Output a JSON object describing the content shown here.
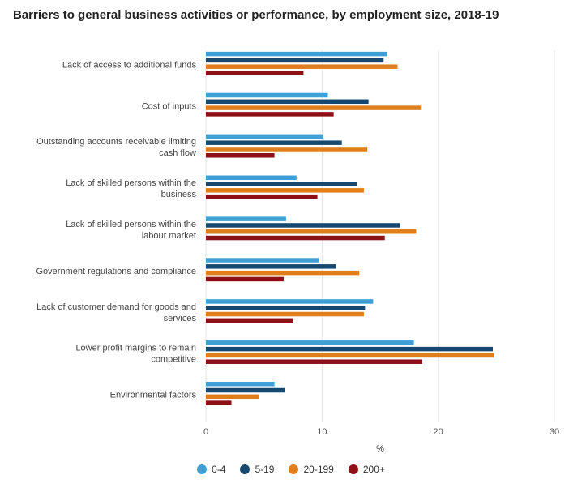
{
  "chart_data": {
    "type": "bar",
    "orientation": "horizontal",
    "title": "Barriers to general business activities or performance, by employment size, 2018-19",
    "categories": [
      "Lack of access to additional funds",
      "Cost of inputs",
      "Outstanding accounts receivable limiting cash flow",
      "Lack of skilled persons within the business",
      "Lack of skilled persons within the labour market",
      "Government regulations and compliance",
      "Lack of customer demand for goods and services",
      "Lower profit margins to remain competitive",
      "Environmental factors"
    ],
    "series": [
      {
        "name": "0-4",
        "color": "#3fa0d8",
        "values": [
          15.6,
          10.5,
          10.1,
          7.8,
          6.9,
          9.7,
          14.4,
          17.9,
          5.9
        ]
      },
      {
        "name": "5-19",
        "color": "#17486f",
        "values": [
          15.3,
          14.0,
          11.7,
          13.0,
          16.7,
          11.2,
          13.7,
          24.7,
          6.8
        ]
      },
      {
        "name": "20-199",
        "color": "#e07e1b",
        "values": [
          16.5,
          18.5,
          13.9,
          13.6,
          18.1,
          13.2,
          13.6,
          24.8,
          4.6
        ]
      },
      {
        "name": "200+",
        "color": "#8c1016",
        "values": [
          8.4,
          11.0,
          5.9,
          9.6,
          15.4,
          6.7,
          7.5,
          18.6,
          2.2
        ]
      }
    ],
    "xlabel": "%",
    "xlim": [
      0,
      30
    ],
    "xticks": [
      0,
      10,
      20,
      30
    ],
    "grid": true,
    "legend_position": "bottom"
  }
}
